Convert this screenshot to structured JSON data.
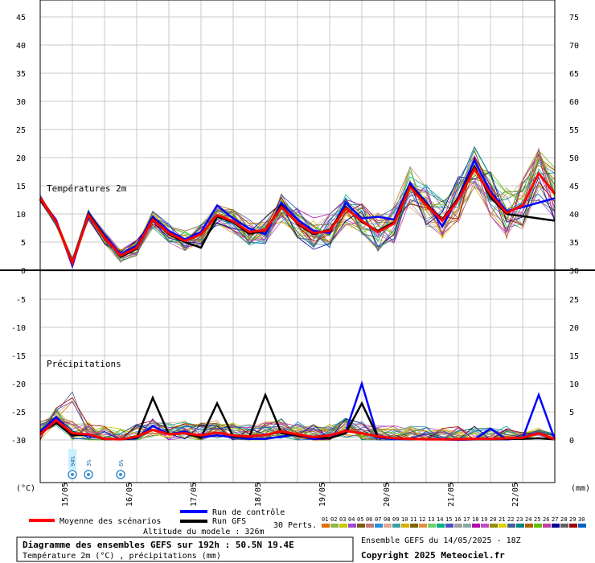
{
  "chart_data": {
    "type": "line",
    "temperature_panel": {
      "label": "Températures 2m",
      "left_axis_ticks": [
        "45",
        "40",
        "35",
        "30",
        "25",
        "20",
        "15",
        "10",
        "5",
        "0"
      ],
      "right_axis_ticks": [
        "75",
        "70",
        "65",
        "60",
        "55",
        "50",
        "45",
        "40",
        "35",
        "30"
      ],
      "ylim": [
        0,
        45
      ],
      "series": [
        {
          "name": "Moyenne des scénarios",
          "color": "#ff0000",
          "values": [
            12.8,
            8.5,
            1.3,
            9.8,
            5.8,
            2.6,
            4.0,
            9.0,
            6.6,
            5.2,
            6.4,
            9.8,
            8.7,
            6.8,
            7.1,
            11.2,
            8.4,
            6.6,
            7.0,
            11.0,
            8.8,
            6.8,
            8.3,
            14.8,
            11.6,
            8.8,
            12.5,
            18.0,
            13.5,
            10.2,
            11.5,
            17.2,
            13.6
          ]
        },
        {
          "name": "Run de contrôle",
          "color": "#0000ff",
          "values": [
            12.6,
            8.8,
            0.8,
            10.2,
            6.2,
            2.8,
            4.4,
            9.5,
            7.0,
            5.5,
            6.8,
            11.5,
            9.2,
            7.4,
            6.4,
            12.0,
            9.0,
            7.0,
            6.6,
            12.0,
            9.2,
            9.5,
            9.0,
            15.5,
            12.0,
            7.8,
            13.0,
            19.5,
            14.0,
            10.5,
            11.2,
            12.0,
            12.8
          ]
        },
        {
          "name": "Run GFS",
          "color": "#000000",
          "values": [
            12.5,
            8.6,
            1.4,
            10.0,
            6.0,
            2.4,
            3.8,
            9.2,
            6.4,
            5.0,
            4.0,
            9.5,
            8.5,
            6.5,
            7.0,
            11.5,
            8.2,
            6.4,
            7.2,
            11.2,
            8.6,
            7.0,
            8.5,
            15.0,
            11.8,
            9.0,
            12.8,
            18.4,
            13.0,
            10.0,
            9.6,
            9.2,
            8.8
          ]
        }
      ]
    },
    "precipitation_panel": {
      "label": "Précipitations",
      "left_axis_ticks": [
        "0",
        "-5",
        "-10",
        "-15",
        "-20",
        "-25",
        "-30"
      ],
      "right_axis_ticks": [
        "30",
        "25",
        "20",
        "15",
        "10",
        "5",
        "0"
      ],
      "ylim": [
        0,
        30
      ],
      "series": [
        {
          "name": "Moyenne des scénarios",
          "color": "#ff0000",
          "values": [
            1.0,
            3.5,
            1.2,
            1.0,
            0.2,
            0.1,
            0.6,
            1.8,
            1.0,
            1.2,
            0.8,
            1.3,
            0.8,
            0.6,
            0.9,
            1.5,
            1.0,
            0.5,
            0.8,
            1.6,
            1.2,
            0.6,
            0.3,
            0.2,
            0.1,
            0.1,
            0.1,
            0.2,
            0.2,
            0.3,
            0.4,
            1.2,
            0.1
          ]
        },
        {
          "name": "Run de contrôle",
          "color": "#0000ff",
          "values": [
            1.5,
            4.0,
            1.0,
            0.8,
            0.2,
            0.1,
            0.3,
            2.5,
            1.0,
            1.5,
            0.5,
            0.8,
            0.5,
            0.2,
            0.2,
            0.6,
            1.0,
            0.2,
            0.3,
            1.5,
            10.0,
            0.4,
            0.2,
            0.1,
            0.1,
            0.1,
            0.0,
            0.1,
            2.0,
            0.1,
            0.3,
            8.0,
            0.1
          ]
        },
        {
          "name": "Run GFS",
          "color": "#000000",
          "values": [
            1.2,
            3.0,
            0.8,
            1.0,
            0.1,
            0.1,
            0.4,
            7.5,
            1.0,
            1.2,
            0.4,
            6.5,
            0.6,
            0.5,
            8.0,
            1.2,
            0.8,
            0.5,
            0.3,
            1.2,
            6.5,
            0.5,
            0.3,
            0.1,
            0.1,
            0.1,
            0.1,
            0.1,
            0.1,
            0.2,
            0.2,
            0.3,
            0.1
          ]
        }
      ]
    },
    "x_tick_labels": [
      "15/05",
      "16/05",
      "17/05",
      "18/05",
      "19/05",
      "20/05",
      "21/05",
      "22/05"
    ],
    "left_unit": "(°C)",
    "right_unit": "(mm)",
    "snow_markers": [
      "94%",
      "3%",
      "6%"
    ],
    "grid": true
  },
  "legend": {
    "mean_label": "Moyenne des scénarios",
    "control_label": "Run de contrôle",
    "gfs_label": "Run GFS",
    "perts_label": "30 Perts.",
    "pert_numbers": [
      "01",
      "02",
      "03",
      "04",
      "05",
      "06",
      "07",
      "08",
      "09",
      "10",
      "11",
      "12",
      "13",
      "14",
      "15",
      "16",
      "17",
      "18",
      "19",
      "20",
      "21",
      "22",
      "23",
      "24",
      "25",
      "26",
      "27",
      "28",
      "29",
      "30"
    ],
    "altitude": "Altitude du modele : 326m"
  },
  "footer": {
    "title": "Diagramme des ensembles GEFS sur 192h : 50.5N 19.4E",
    "subtitle": "Température 2m (°C) , précipitations (mm)",
    "ensemble_run": "Ensemble GEFS du 14/05/2025 - 18Z",
    "copyright": "Copyright 2025 Meteociel.fr"
  }
}
